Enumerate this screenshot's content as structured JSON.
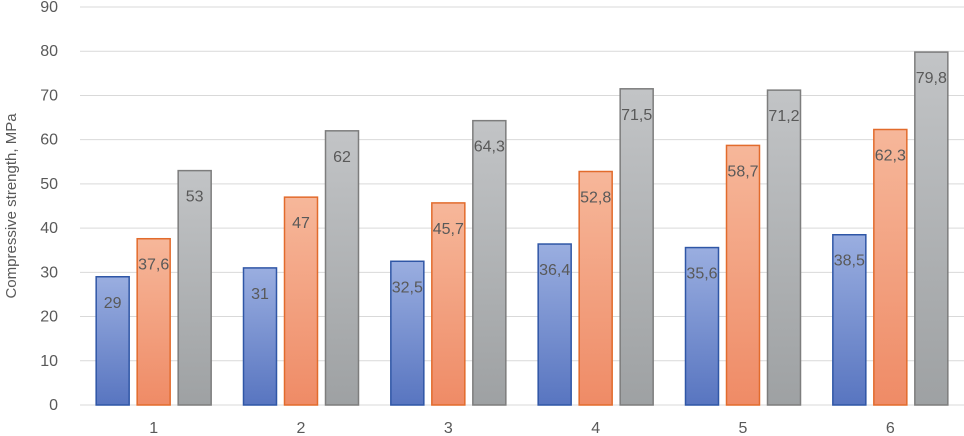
{
  "chart_data": {
    "type": "bar",
    "ylabel": "Compressive strength, MPa",
    "xlabel": "",
    "categories": [
      "1",
      "2",
      "3",
      "4",
      "5",
      "6"
    ],
    "y_ticks": [
      "0",
      "10",
      "20",
      "30",
      "40",
      "50",
      "60",
      "70",
      "80",
      "90"
    ],
    "ylim": [
      0,
      90
    ],
    "grid": true,
    "legend": "none",
    "series": [
      {
        "values": [
          29,
          31,
          32.5,
          36.4,
          35.6,
          38.5
        ],
        "data_labels": [
          "29",
          "31",
          "32,5",
          "36,4",
          "35,6",
          "38,5"
        ],
        "colors": {
          "top": "#9aaee0",
          "bottom": "#5875c0",
          "border": "#2f56a6"
        }
      },
      {
        "values": [
          37.6,
          47,
          45.7,
          52.8,
          58.7,
          62.3
        ],
        "data_labels": [
          "37,6",
          "47",
          "45,7",
          "52,8",
          "58,7",
          "62,3"
        ],
        "colors": {
          "top": "#f6b79a",
          "bottom": "#ef8b66",
          "border": "#e26b2c"
        }
      },
      {
        "values": [
          53,
          62,
          64.3,
          71.5,
          71.2,
          79.8
        ],
        "data_labels": [
          "53",
          "62",
          "64,3",
          "71,5",
          "71,2",
          "79,8"
        ],
        "colors": {
          "top": "#c2c4c6",
          "bottom": "#9ea1a3",
          "border": "#7d7d7d"
        }
      }
    ],
    "gridline_color": "#d9d9d9"
  }
}
